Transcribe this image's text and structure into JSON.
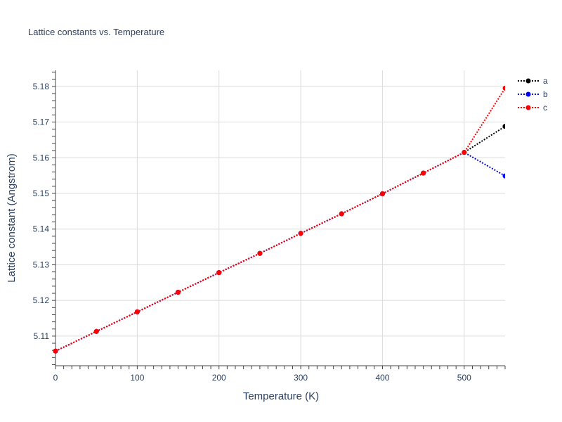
{
  "chart_data": {
    "type": "line",
    "title": "Lattice constants vs. Temperature",
    "xlabel": "Temperature (K)",
    "ylabel": "Lattice constant (Angstrom)",
    "xlim": [
      0,
      550
    ],
    "ylim": [
      5.1017,
      5.1845
    ],
    "x_ticks": [
      "0",
      "100",
      "200",
      "300",
      "400",
      "500"
    ],
    "y_ticks": [
      "5.11",
      "5.12",
      "5.13",
      "5.14",
      "5.15",
      "5.16",
      "5.17",
      "5.18"
    ],
    "grid": true,
    "legend_position": "top-right",
    "x": [
      0,
      50,
      100,
      150,
      200,
      250,
      300,
      350,
      400,
      450,
      500,
      550
    ],
    "series": [
      {
        "name": "a",
        "color": "#000000",
        "values": [
          5.1058,
          5.1113,
          5.1168,
          5.1223,
          5.1278,
          5.1332,
          5.1388,
          5.1443,
          5.1499,
          5.1557,
          5.1615,
          5.1688
        ]
      },
      {
        "name": "b",
        "color": "#0000ff",
        "values": [
          5.1058,
          5.1113,
          5.1168,
          5.1223,
          5.1278,
          5.1332,
          5.1388,
          5.1443,
          5.1499,
          5.1557,
          5.1615,
          5.1549
        ]
      },
      {
        "name": "c",
        "color": "#ff0000",
        "values": [
          5.1058,
          5.1113,
          5.1168,
          5.1223,
          5.1278,
          5.1332,
          5.1388,
          5.1443,
          5.1499,
          5.1557,
          5.1615,
          5.1795
        ]
      }
    ]
  }
}
